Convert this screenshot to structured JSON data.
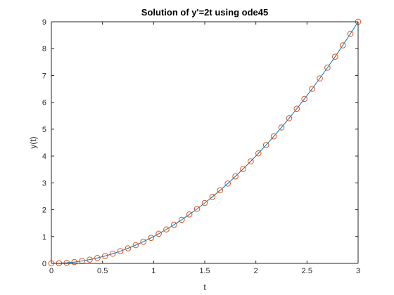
{
  "chart_data": {
    "type": "line",
    "title": "Solution of y'=2t using ode45",
    "xlabel": "t",
    "ylabel": "y(t)",
    "xlim": [
      0,
      3
    ],
    "ylim": [
      0,
      9
    ],
    "xticks": [
      0,
      0.5,
      1,
      1.5,
      2,
      2.5,
      3
    ],
    "xtick_labels": [
      "0",
      "0.5",
      "1",
      "1.5",
      "2",
      "2.5",
      "3"
    ],
    "yticks": [
      0,
      1,
      2,
      3,
      4,
      5,
      6,
      7,
      8,
      9
    ],
    "ytick_labels": [
      "0",
      "1",
      "2",
      "3",
      "4",
      "5",
      "6",
      "7",
      "8",
      "9"
    ],
    "grid": false,
    "legend": "none",
    "series": [
      {
        "style": "line",
        "color": "#0072BD",
        "x": [
          0,
          0.075,
          0.15,
          0.225,
          0.3,
          0.375,
          0.45,
          0.525,
          0.6,
          0.675,
          0.75,
          0.825,
          0.9,
          0.975,
          1.05,
          1.125,
          1.2,
          1.275,
          1.35,
          1.425,
          1.5,
          1.575,
          1.65,
          1.725,
          1.8,
          1.875,
          1.95,
          2.025,
          2.1,
          2.175,
          2.25,
          2.325,
          2.4,
          2.475,
          2.55,
          2.625,
          2.7,
          2.775,
          2.85,
          2.925,
          3.0
        ],
        "y": [
          0,
          0.0056,
          0.0225,
          0.0506,
          0.09,
          0.1406,
          0.2025,
          0.2756,
          0.36,
          0.4556,
          0.5625,
          0.6806,
          0.81,
          0.9506,
          1.1025,
          1.2656,
          1.44,
          1.6256,
          1.8225,
          2.0306,
          2.25,
          2.4806,
          2.7225,
          2.9756,
          3.24,
          3.5156,
          3.8025,
          4.1006,
          4.41,
          4.7306,
          5.0625,
          5.4056,
          5.76,
          6.1256,
          6.5025,
          6.8906,
          7.29,
          7.7006,
          8.1225,
          8.5556,
          9.0
        ]
      },
      {
        "style": "markers",
        "marker": "circle",
        "color": "#D95319",
        "x": [
          0,
          0.075,
          0.15,
          0.225,
          0.3,
          0.375,
          0.45,
          0.525,
          0.6,
          0.675,
          0.75,
          0.825,
          0.9,
          0.975,
          1.05,
          1.125,
          1.2,
          1.275,
          1.35,
          1.425,
          1.5,
          1.575,
          1.65,
          1.725,
          1.8,
          1.875,
          1.95,
          2.025,
          2.1,
          2.175,
          2.25,
          2.325,
          2.4,
          2.475,
          2.55,
          2.625,
          2.7,
          2.775,
          2.85,
          2.925,
          3.0
        ],
        "y": [
          0,
          0.0056,
          0.0225,
          0.0506,
          0.09,
          0.1406,
          0.2025,
          0.2756,
          0.36,
          0.4556,
          0.5625,
          0.6806,
          0.81,
          0.9506,
          1.1025,
          1.2656,
          1.44,
          1.6256,
          1.8225,
          2.0306,
          2.25,
          2.4806,
          2.7225,
          2.9756,
          3.24,
          3.5156,
          3.8025,
          4.1006,
          4.41,
          4.7306,
          5.0625,
          5.4056,
          5.76,
          6.1256,
          6.5025,
          6.8906,
          7.29,
          7.7006,
          8.1225,
          8.5556,
          9.0
        ]
      }
    ]
  }
}
